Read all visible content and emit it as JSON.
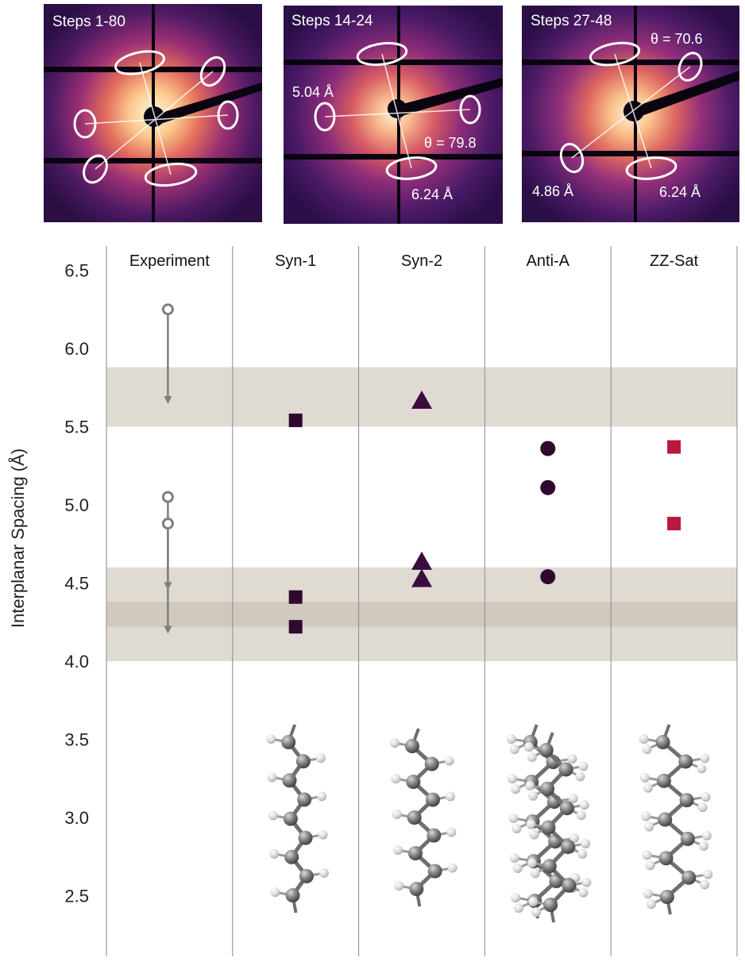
{
  "panels": [
    {
      "title": "Steps 1-80",
      "labels": []
    },
    {
      "title": "Steps 14-24",
      "labels": [
        "5.04 Å",
        "θ = 79.8",
        "6.24 Å"
      ]
    },
    {
      "title": "Steps 27-48",
      "labels": [
        "θ = 70.6",
        "4.86 Å",
        "6.24 Å"
      ]
    }
  ],
  "chart_data": {
    "type": "scatter",
    "ylabel": "Interplanar Spacing (Å)",
    "ylim": [
      2.25,
      6.5
    ],
    "yticks": [
      "6.5",
      "6.0",
      "5.5",
      "5.0",
      "4.5",
      "4.0",
      "3.5",
      "3.0",
      "2.5"
    ],
    "categories": [
      "Experiment",
      "Syn-1",
      "Syn-2",
      "Anti-A",
      "ZZ-Sat"
    ],
    "bands": [
      {
        "from": 5.5,
        "to": 5.88
      },
      {
        "from": 4.0,
        "to": 4.6
      },
      {
        "from": 4.22,
        "to": 4.38
      }
    ],
    "experiment": [
      {
        "start": 6.25,
        "end": 5.65
      },
      {
        "start": 5.05,
        "end": 4.46
      },
      {
        "start": 4.88,
        "end": 4.18
      }
    ],
    "series": [
      {
        "category": "Syn-1",
        "marker": "square",
        "color": "#2d0a2e",
        "values": [
          5.54,
          4.41,
          4.22
        ]
      },
      {
        "category": "Syn-2",
        "marker": "triangle",
        "color": "#3a0d3c",
        "values": [
          5.67,
          4.64,
          4.53
        ]
      },
      {
        "category": "Anti-A",
        "marker": "circle",
        "color": "#2d0a2e",
        "values": [
          5.36,
          5.11,
          4.54
        ]
      },
      {
        "category": "ZZ-Sat",
        "marker": "square",
        "color": "#b8173f",
        "values": [
          5.37,
          4.88
        ]
      }
    ]
  }
}
